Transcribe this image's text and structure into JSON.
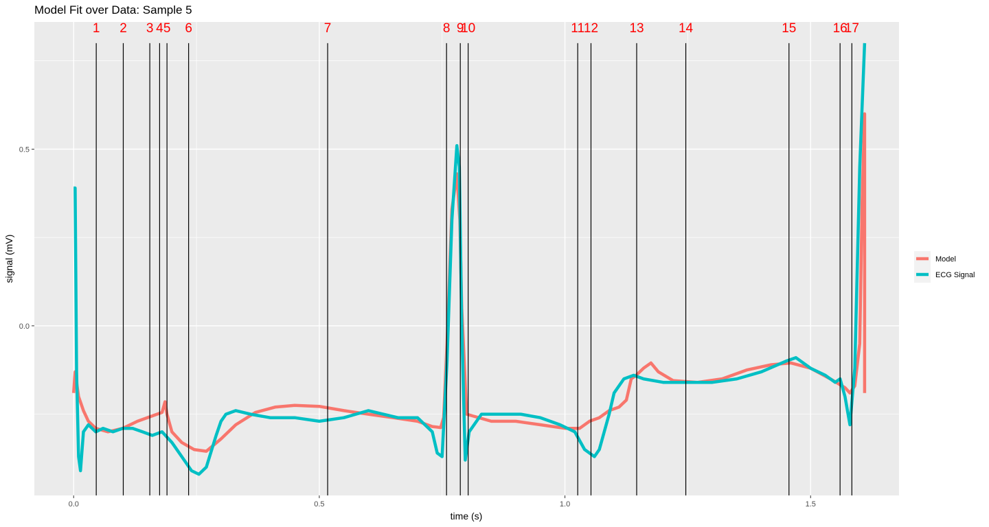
{
  "chart_data": {
    "type": "line",
    "title": "Model Fit over Data: Sample 5",
    "xlabel": "time (s)",
    "ylabel": "signal (mV)",
    "xlim": [
      -0.08,
      1.68
    ],
    "ylim": [
      -0.48,
      0.86
    ],
    "x_ticks": [
      0.0,
      0.5,
      1.0,
      1.5
    ],
    "x_tick_labels": [
      "0.0",
      "0.5",
      "1.0",
      "1.5"
    ],
    "y_ticks": [
      0.0,
      0.5
    ],
    "y_tick_labels": [
      "0.0",
      "0.5"
    ],
    "grid": true,
    "legend_position": "right",
    "series": [
      {
        "name": "Model",
        "color": "#F8766D",
        "x": [
          0.0,
          0.003,
          0.01,
          0.02,
          0.03,
          0.045,
          0.07,
          0.1,
          0.13,
          0.16,
          0.18,
          0.186,
          0.19,
          0.2,
          0.22,
          0.245,
          0.27,
          0.3,
          0.33,
          0.37,
          0.41,
          0.45,
          0.5,
          0.55,
          0.6,
          0.65,
          0.7,
          0.73,
          0.747,
          0.753,
          0.76,
          0.77,
          0.78,
          0.786,
          0.79,
          0.8,
          0.85,
          0.9,
          0.95,
          1.0,
          1.03,
          1.05,
          1.07,
          1.09,
          1.11,
          1.125,
          1.135,
          1.145,
          1.16,
          1.175,
          1.19,
          1.22,
          1.27,
          1.32,
          1.37,
          1.42,
          1.46,
          1.5,
          1.54,
          1.57,
          1.58,
          1.59,
          1.6,
          1.605,
          1.61,
          1.61
        ],
        "y": [
          -0.19,
          -0.13,
          -0.2,
          -0.24,
          -0.27,
          -0.29,
          -0.3,
          -0.29,
          -0.27,
          -0.255,
          -0.245,
          -0.215,
          -0.25,
          -0.3,
          -0.33,
          -0.35,
          -0.355,
          -0.32,
          -0.28,
          -0.245,
          -0.23,
          -0.225,
          -0.228,
          -0.24,
          -0.25,
          -0.26,
          -0.27,
          -0.285,
          -0.288,
          -0.26,
          -0.05,
          0.33,
          0.43,
          0.3,
          0.05,
          -0.25,
          -0.27,
          -0.27,
          -0.28,
          -0.29,
          -0.29,
          -0.27,
          -0.26,
          -0.24,
          -0.23,
          -0.21,
          -0.15,
          -0.14,
          -0.12,
          -0.105,
          -0.13,
          -0.155,
          -0.16,
          -0.15,
          -0.125,
          -0.11,
          -0.105,
          -0.12,
          -0.15,
          -0.175,
          -0.19,
          -0.17,
          -0.05,
          0.35,
          0.6,
          -0.19
        ]
      },
      {
        "name": "ECG Signal",
        "color": "#00BFC4",
        "x": [
          0.0,
          0.003,
          0.006,
          0.01,
          0.014,
          0.02,
          0.03,
          0.045,
          0.06,
          0.08,
          0.1,
          0.12,
          0.14,
          0.16,
          0.18,
          0.2,
          0.22,
          0.24,
          0.255,
          0.27,
          0.29,
          0.3,
          0.31,
          0.33,
          0.36,
          0.4,
          0.45,
          0.5,
          0.55,
          0.6,
          0.63,
          0.66,
          0.7,
          0.73,
          0.74,
          0.75,
          0.76,
          0.77,
          0.78,
          0.785,
          0.79,
          0.797,
          0.805,
          0.83,
          0.87,
          0.91,
          0.95,
          0.99,
          1.02,
          1.04,
          1.06,
          1.07,
          1.09,
          1.1,
          1.12,
          1.14,
          1.16,
          1.2,
          1.25,
          1.3,
          1.35,
          1.4,
          1.45,
          1.47,
          1.5,
          1.53,
          1.55,
          1.56,
          1.57,
          1.58,
          1.59,
          1.6,
          1.61
        ],
        "y": [
          0.39,
          0.39,
          -0.13,
          -0.37,
          -0.41,
          -0.3,
          -0.28,
          -0.3,
          -0.29,
          -0.3,
          -0.29,
          -0.29,
          -0.3,
          -0.31,
          -0.3,
          -0.33,
          -0.37,
          -0.41,
          -0.42,
          -0.4,
          -0.31,
          -0.27,
          -0.25,
          -0.24,
          -0.25,
          -0.26,
          -0.26,
          -0.27,
          -0.26,
          -0.24,
          -0.25,
          -0.26,
          -0.26,
          -0.3,
          -0.36,
          -0.37,
          -0.1,
          0.3,
          0.51,
          0.45,
          0.0,
          -0.38,
          -0.3,
          -0.25,
          -0.25,
          -0.25,
          -0.26,
          -0.28,
          -0.3,
          -0.35,
          -0.37,
          -0.35,
          -0.25,
          -0.19,
          -0.15,
          -0.14,
          -0.15,
          -0.16,
          -0.16,
          -0.16,
          -0.15,
          -0.13,
          -0.1,
          -0.09,
          -0.12,
          -0.14,
          -0.16,
          -0.15,
          -0.2,
          -0.28,
          -0.12,
          0.45,
          0.8
        ]
      }
    ],
    "vlines": [
      {
        "label": "1",
        "x": 0.046
      },
      {
        "label": "2",
        "x": 0.101
      },
      {
        "label": "3",
        "x": 0.155
      },
      {
        "label": "4",
        "x": 0.175
      },
      {
        "label": "5",
        "x": 0.19
      },
      {
        "label": "6",
        "x": 0.234
      },
      {
        "label": "7",
        "x": 0.517
      },
      {
        "label": "8",
        "x": 0.759
      },
      {
        "label": "9",
        "x": 0.787
      },
      {
        "label": "10",
        "x": 0.803
      },
      {
        "label": "11",
        "x": 1.026
      },
      {
        "label": "12",
        "x": 1.053
      },
      {
        "label": "13",
        "x": 1.146
      },
      {
        "label": "14",
        "x": 1.246
      },
      {
        "label": "15",
        "x": 1.456
      },
      {
        "label": "16",
        "x": 1.56
      },
      {
        "label": "17",
        "x": 1.584
      }
    ],
    "marker_label_color": "#FF0000",
    "legend": [
      {
        "label": "Model",
        "color": "#F8766D"
      },
      {
        "label": "ECG Signal",
        "color": "#00BFC4"
      }
    ]
  }
}
